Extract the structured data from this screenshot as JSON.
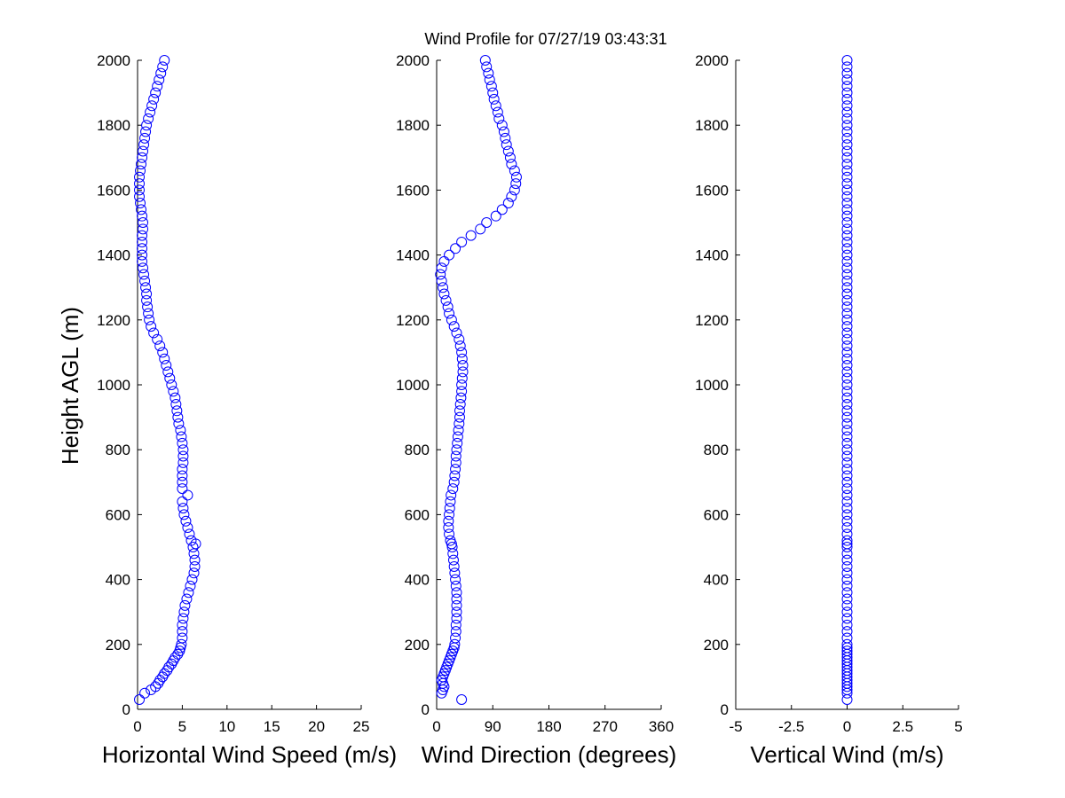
{
  "figure": {
    "title": "Wind Profile for  07/27/19 03:43:31",
    "ylabel": "Height AGL (m)"
  },
  "colors": {
    "marker": "#0000ff",
    "axes": "#000000",
    "background": "#ffffff"
  },
  "chart_data": [
    {
      "type": "scatter",
      "name": "horizontal-speed",
      "xlabel": "Horizontal Wind Speed (m/s)",
      "xlim": [
        0,
        25
      ],
      "ylim": [
        0,
        2000
      ],
      "xticks": [
        "0",
        "5",
        "10",
        "15",
        "20",
        "25"
      ],
      "yticks": [
        "0",
        "200",
        "400",
        "600",
        "800",
        "1000",
        "1200",
        "1400",
        "1600",
        "1800",
        "2000"
      ],
      "x_column": "speed",
      "grid": false
    },
    {
      "type": "scatter",
      "name": "wind-direction",
      "xlabel": "Wind Direction (degrees)",
      "xlim": [
        0,
        360
      ],
      "ylim": [
        0,
        2000
      ],
      "xticks": [
        "0",
        "90",
        "180",
        "270",
        "360"
      ],
      "yticks": [
        "0",
        "200",
        "400",
        "600",
        "800",
        "1000",
        "1200",
        "1400",
        "1600",
        "1800",
        "2000"
      ],
      "x_column": "direction",
      "grid": false
    },
    {
      "type": "scatter",
      "name": "vertical-wind",
      "xlabel": "Vertical Wind (m/s)",
      "xlim": [
        -5,
        5
      ],
      "ylim": [
        0,
        2000
      ],
      "xticks": [
        "-5",
        "-2.5",
        "0",
        "2.5",
        "5"
      ],
      "yticks": [
        "0",
        "200",
        "400",
        "600",
        "800",
        "1000",
        "1200",
        "1400",
        "1600",
        "1800",
        "2000"
      ],
      "x_column": "vertical",
      "grid": false
    }
  ],
  "profile": {
    "columns": [
      "height",
      "speed",
      "direction",
      "vertical"
    ],
    "rows": [
      [
        30,
        0.2,
        40,
        0
      ],
      [
        50,
        0.8,
        8,
        0
      ],
      [
        60,
        1.5,
        10,
        0
      ],
      [
        70,
        2,
        12,
        0
      ],
      [
        80,
        2.3,
        10,
        0
      ],
      [
        90,
        2.5,
        8,
        0
      ],
      [
        100,
        2.8,
        10,
        0
      ],
      [
        110,
        3,
        12,
        0
      ],
      [
        120,
        3.3,
        14,
        0
      ],
      [
        130,
        3.5,
        16,
        0
      ],
      [
        140,
        3.8,
        18,
        0
      ],
      [
        150,
        4,
        20,
        0
      ],
      [
        160,
        4.2,
        22,
        0
      ],
      [
        170,
        4.5,
        24,
        0
      ],
      [
        180,
        4.7,
        26,
        0
      ],
      [
        190,
        4.8,
        28,
        0
      ],
      [
        200,
        4.9,
        29,
        0
      ],
      [
        220,
        5,
        30,
        0
      ],
      [
        240,
        5,
        31,
        0
      ],
      [
        260,
        5,
        31,
        0
      ],
      [
        280,
        5.1,
        32,
        0
      ],
      [
        300,
        5.2,
        32,
        0
      ],
      [
        320,
        5.3,
        32,
        0
      ],
      [
        340,
        5.5,
        32,
        0
      ],
      [
        360,
        5.7,
        32,
        0
      ],
      [
        380,
        5.9,
        31,
        0
      ],
      [
        400,
        6.1,
        30,
        0
      ],
      [
        420,
        6.3,
        29,
        0
      ],
      [
        440,
        6.4,
        28,
        0
      ],
      [
        460,
        6.4,
        27,
        0
      ],
      [
        480,
        6.3,
        26,
        0
      ],
      [
        500,
        6.2,
        25,
        0
      ],
      [
        510,
        6.5,
        24,
        0
      ],
      [
        520,
        6,
        22,
        0
      ],
      [
        540,
        5.8,
        20,
        0
      ],
      [
        560,
        5.6,
        19,
        0
      ],
      [
        580,
        5.4,
        19,
        0
      ],
      [
        600,
        5.2,
        20,
        0
      ],
      [
        620,
        5.1,
        21,
        0
      ],
      [
        640,
        5,
        22,
        0
      ],
      [
        660,
        5.6,
        23,
        0
      ],
      [
        680,
        5,
        26,
        0
      ],
      [
        700,
        5,
        28,
        0
      ],
      [
        720,
        5,
        29,
        0
      ],
      [
        740,
        5,
        30,
        0
      ],
      [
        760,
        5.1,
        31,
        0
      ],
      [
        780,
        5.1,
        31,
        0
      ],
      [
        800,
        5.1,
        32,
        0
      ],
      [
        820,
        5,
        33,
        0
      ],
      [
        840,
        4.9,
        34,
        0
      ],
      [
        860,
        4.8,
        35,
        0
      ],
      [
        880,
        4.6,
        36,
        0
      ],
      [
        900,
        4.5,
        37,
        0
      ],
      [
        920,
        4.4,
        37,
        0
      ],
      [
        940,
        4.3,
        38,
        0
      ],
      [
        960,
        4.2,
        39,
        0
      ],
      [
        980,
        4,
        40,
        0
      ],
      [
        1000,
        3.8,
        40,
        0
      ],
      [
        1020,
        3.6,
        41,
        0
      ],
      [
        1040,
        3.4,
        42,
        0
      ],
      [
        1060,
        3.2,
        42,
        0
      ],
      [
        1080,
        3,
        41,
        0
      ],
      [
        1100,
        2.8,
        40,
        0
      ],
      [
        1120,
        2.5,
        38,
        0
      ],
      [
        1140,
        2.2,
        36,
        0
      ],
      [
        1160,
        1.8,
        32,
        0
      ],
      [
        1180,
        1.5,
        28,
        0
      ],
      [
        1200,
        1.3,
        24,
        0
      ],
      [
        1220,
        1.2,
        20,
        0
      ],
      [
        1240,
        1.1,
        18,
        0
      ],
      [
        1260,
        1,
        15,
        0
      ],
      [
        1280,
        1,
        12,
        0
      ],
      [
        1300,
        0.9,
        10,
        0
      ],
      [
        1320,
        0.8,
        8,
        0
      ],
      [
        1340,
        0.7,
        6,
        0
      ],
      [
        1360,
        0.6,
        8,
        0
      ],
      [
        1380,
        0.5,
        12,
        0
      ],
      [
        1400,
        0.5,
        20,
        0
      ],
      [
        1420,
        0.5,
        30,
        0
      ],
      [
        1440,
        0.5,
        40,
        0
      ],
      [
        1460,
        0.5,
        55,
        0
      ],
      [
        1480,
        0.6,
        70,
        0
      ],
      [
        1500,
        0.6,
        80,
        0
      ],
      [
        1520,
        0.5,
        95,
        0
      ],
      [
        1540,
        0.4,
        105,
        0
      ],
      [
        1560,
        0.3,
        115,
        0
      ],
      [
        1580,
        0.2,
        120,
        0
      ],
      [
        1600,
        0.2,
        125,
        0
      ],
      [
        1620,
        0.2,
        127,
        0
      ],
      [
        1640,
        0.2,
        128,
        0
      ],
      [
        1660,
        0.3,
        125,
        0
      ],
      [
        1680,
        0.4,
        120,
        0
      ],
      [
        1700,
        0.5,
        118,
        0
      ],
      [
        1720,
        0.6,
        115,
        0
      ],
      [
        1740,
        0.7,
        112,
        0
      ],
      [
        1760,
        0.8,
        110,
        0
      ],
      [
        1780,
        0.9,
        108,
        0
      ],
      [
        1800,
        1,
        105,
        0
      ],
      [
        1820,
        1.2,
        100,
        0
      ],
      [
        1840,
        1.4,
        98,
        0
      ],
      [
        1860,
        1.6,
        95,
        0
      ],
      [
        1880,
        1.8,
        92,
        0
      ],
      [
        1900,
        2,
        90,
        0
      ],
      [
        1920,
        2.2,
        88,
        0
      ],
      [
        1940,
        2.4,
        85,
        0
      ],
      [
        1960,
        2.6,
        83,
        0
      ],
      [
        1980,
        2.8,
        80,
        0
      ],
      [
        2000,
        3,
        78,
        0
      ]
    ]
  }
}
